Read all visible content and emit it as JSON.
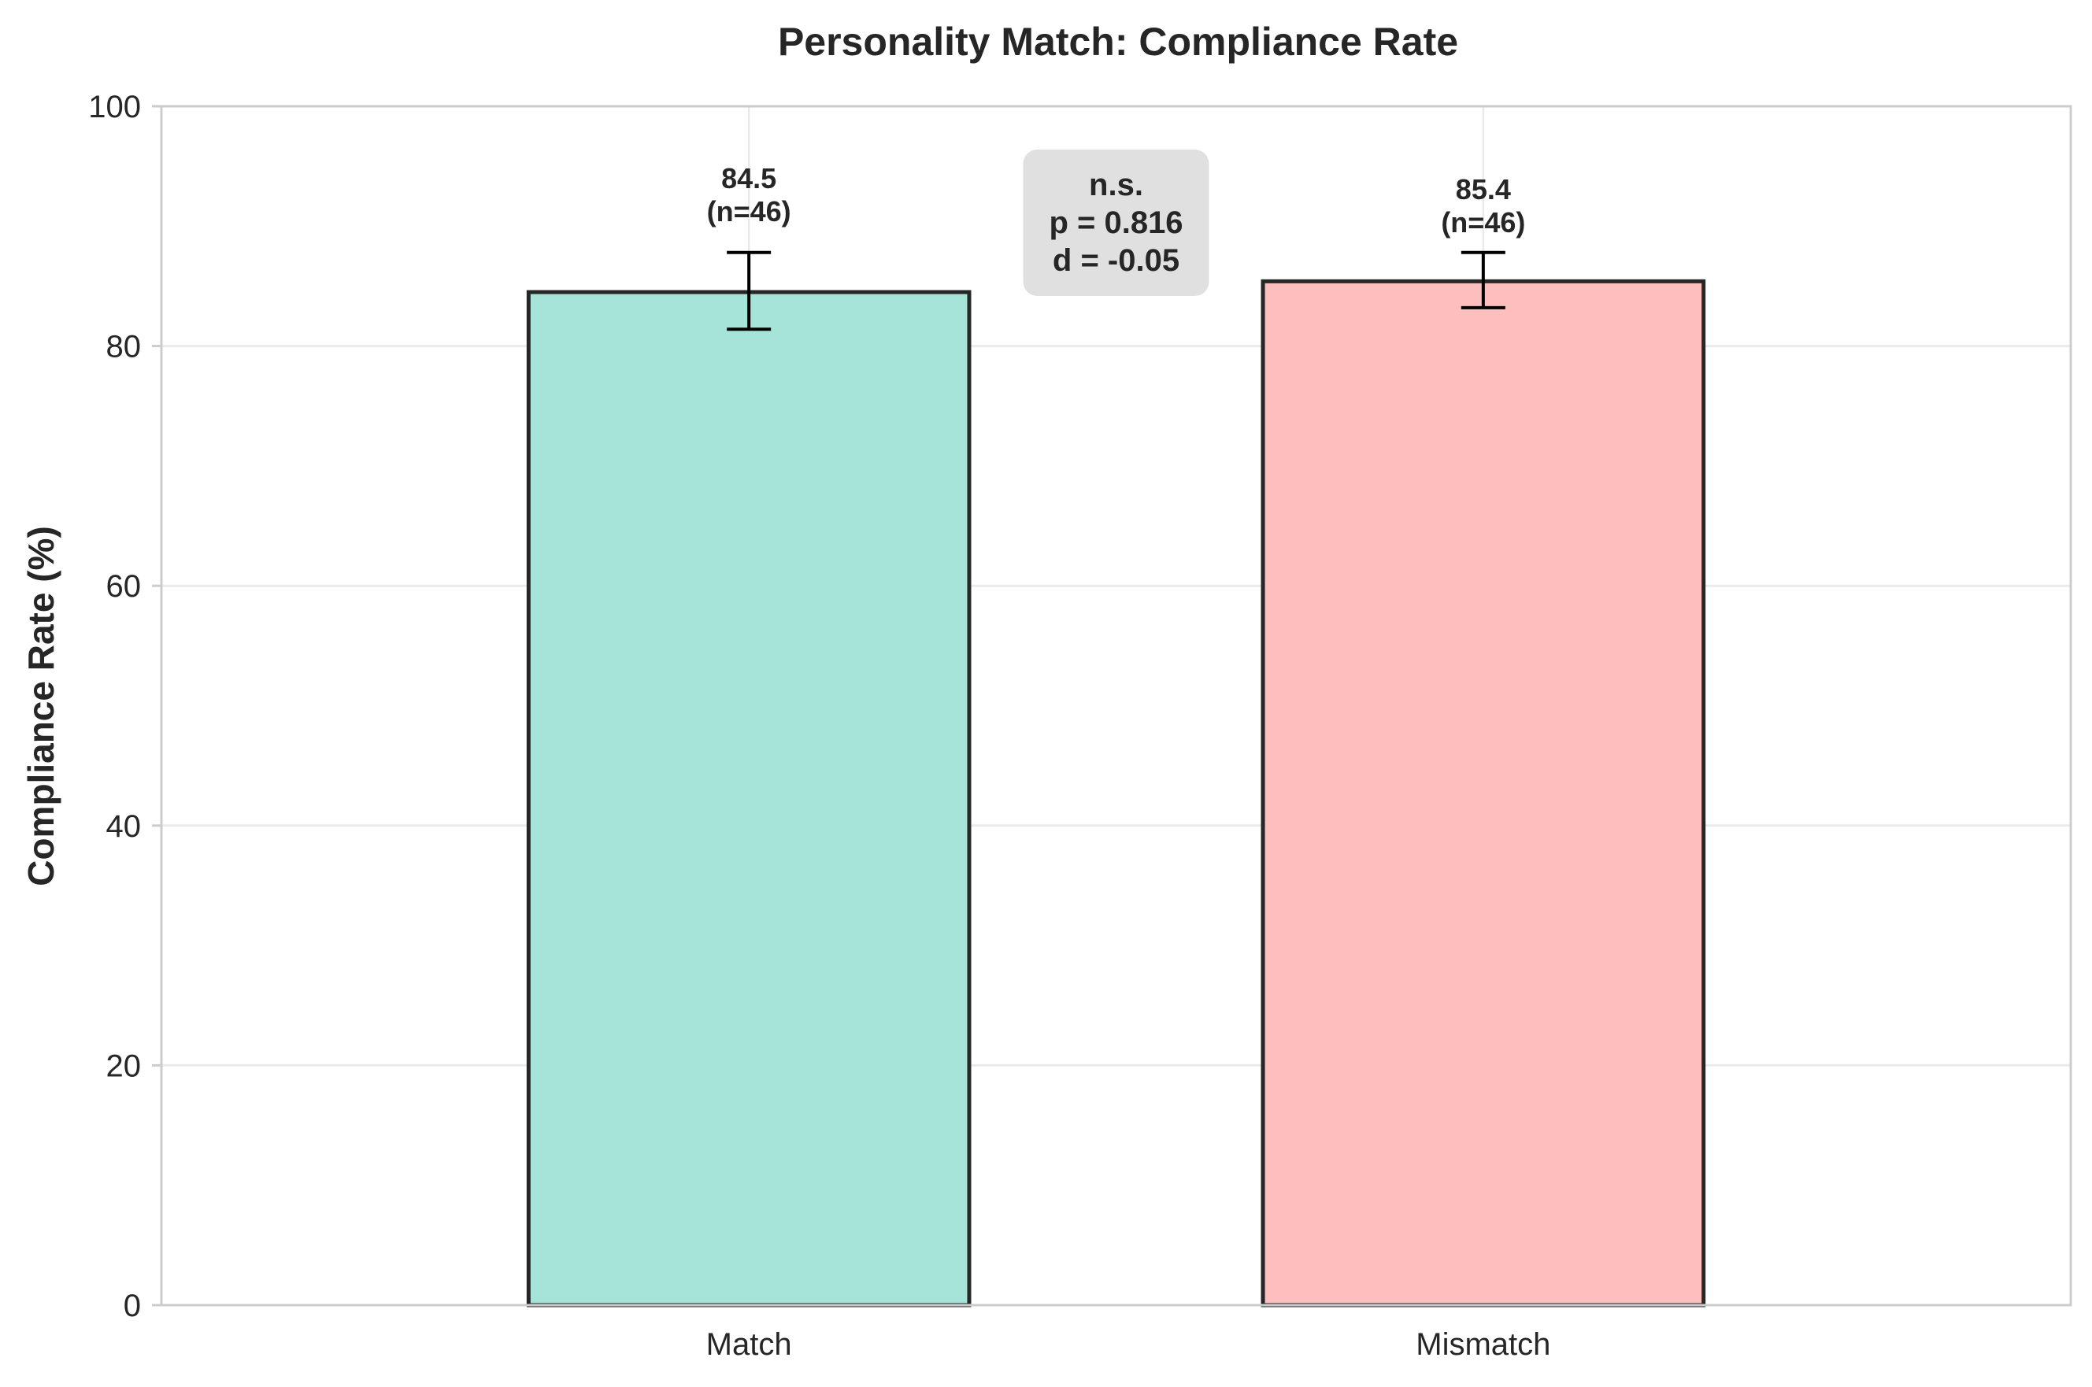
{
  "chart_data": {
    "type": "bar",
    "title": "Personality Match: Compliance Rate",
    "xlabel": "",
    "ylabel": "Compliance Rate (%)",
    "ylim": [
      0,
      100
    ],
    "yticks": [
      0,
      20,
      40,
      60,
      80,
      100
    ],
    "grid": true,
    "categories": [
      "Match",
      "Mismatch"
    ],
    "values": [
      84.5,
      85.4
    ],
    "error_low": [
      81.4,
      83.2
    ],
    "error_high": [
      87.8,
      87.8
    ],
    "value_labels": [
      "84.5",
      "85.4"
    ],
    "n_labels": [
      "(n=46)",
      "(n=46)"
    ],
    "colors": [
      "#a6e3d9",
      "#fdbebe"
    ],
    "edge_color": "#262626",
    "annotation": {
      "lines": [
        "n.s.",
        "p = 0.816",
        "d = -0.05"
      ],
      "background": "#e0e0e0"
    }
  }
}
